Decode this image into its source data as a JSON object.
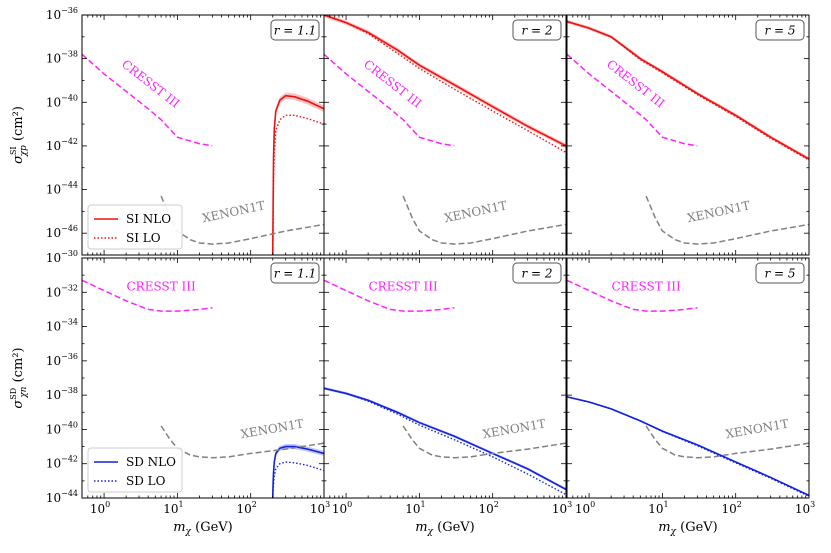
{
  "x_axis_label": "m_χ (GeV)",
  "x_tick_labels": [
    "10^0",
    "10^1",
    "10^2",
    "10^3"
  ],
  "row_axis_labels": [
    "σ^SI_χp (cm²)",
    "σ^SD_χn (cm²)"
  ],
  "legends": [
    {
      "solid": "SI NLO",
      "dotted": "SI LO"
    },
    {
      "solid": "SD NLO",
      "dotted": "SD LO"
    }
  ],
  "colors": {
    "si": "#ee1111",
    "sd": "#1122dd",
    "cresst": "#ff22ff",
    "xenon": "#808080"
  },
  "chart_data": [
    {
      "type": "line",
      "id": "si-r1.1",
      "row": 0,
      "col": 0,
      "r_label": "r = 1.1",
      "xscale": "log",
      "xlim": [
        0.5,
        1000
      ],
      "yscale": "log",
      "ylim": [
        -47,
        -36
      ],
      "ytick_exponents": [
        -36,
        -38,
        -40,
        -42,
        -44,
        -46
      ],
      "series": [
        {
          "name": "SI NLO",
          "style": "solid",
          "x": [
            200,
            202,
            205,
            210,
            220,
            250,
            300,
            400,
            600,
            1000
          ],
          "log10_y": [
            -47,
            -45,
            -42.5,
            -41.2,
            -40.4,
            -39.9,
            -39.7,
            -39.75,
            -39.95,
            -40.3
          ],
          "band": 0.15
        },
        {
          "name": "SI LO",
          "style": "dotted",
          "x": [
            200,
            202,
            205,
            210,
            220,
            250,
            300,
            400,
            600,
            1000
          ],
          "log10_y": [
            -47,
            -45.6,
            -43.5,
            -42.3,
            -41.3,
            -40.8,
            -40.6,
            -40.6,
            -40.75,
            -41.0
          ]
        },
        {
          "name": "CRESST III",
          "style": "dashed",
          "x": [
            0.5,
            1,
            2,
            4,
            6,
            10,
            20,
            30
          ],
          "log10_y": [
            -37.8,
            -38.7,
            -39.5,
            -40.3,
            -40.8,
            -41.6,
            -41.9,
            -42.0
          ]
        },
        {
          "name": "XENON1T",
          "style": "dashed",
          "x": [
            6,
            8,
            10,
            15,
            20,
            30,
            50,
            100,
            300,
            1000
          ],
          "log10_y": [
            -44.3,
            -45.3,
            -45.9,
            -46.3,
            -46.45,
            -46.5,
            -46.45,
            -46.25,
            -45.9,
            -45.6
          ]
        }
      ],
      "annotations": [
        {
          "text": "CRESST III"
        },
        {
          "text": "XENON1T"
        }
      ]
    },
    {
      "type": "line",
      "id": "si-r2",
      "row": 0,
      "col": 1,
      "r_label": "r = 2",
      "xscale": "log",
      "xlim": [
        0.5,
        1000
      ],
      "yscale": "log",
      "ylim": [
        -47,
        -36
      ],
      "ytick_exponents": [
        -36,
        -38,
        -40,
        -42,
        -44,
        -46
      ],
      "series": [
        {
          "name": "SI NLO",
          "style": "solid",
          "x": [
            0.5,
            1,
            2,
            5,
            10,
            30,
            100,
            300,
            1000
          ],
          "log10_y": [
            -36.0,
            -36.35,
            -36.8,
            -37.6,
            -38.3,
            -39.2,
            -40.2,
            -41.1,
            -42.0
          ],
          "band": 0.1
        },
        {
          "name": "SI LO",
          "style": "dotted",
          "x": [
            0.5,
            1,
            2,
            5,
            10,
            30,
            100,
            300,
            1000
          ],
          "log10_y": [
            -36.0,
            -36.35,
            -36.85,
            -37.75,
            -38.45,
            -39.4,
            -40.4,
            -41.3,
            -42.3
          ]
        },
        {
          "name": "CRESST III",
          "style": "dashed",
          "x": [
            0.5,
            1,
            2,
            4,
            6,
            10,
            20,
            30
          ],
          "log10_y": [
            -37.8,
            -38.7,
            -39.5,
            -40.3,
            -40.8,
            -41.6,
            -41.9,
            -42.0
          ]
        },
        {
          "name": "XENON1T",
          "style": "dashed",
          "x": [
            6,
            8,
            10,
            15,
            20,
            30,
            50,
            100,
            300,
            1000
          ],
          "log10_y": [
            -44.3,
            -45.3,
            -45.9,
            -46.3,
            -46.45,
            -46.5,
            -46.45,
            -46.25,
            -45.9,
            -45.6
          ]
        }
      ],
      "annotations": [
        {
          "text": "CRESST III"
        },
        {
          "text": "XENON1T"
        }
      ]
    },
    {
      "type": "line",
      "id": "si-r5",
      "row": 0,
      "col": 2,
      "r_label": "r = 5",
      "xscale": "log",
      "xlim": [
        0.5,
        1000
      ],
      "yscale": "log",
      "ylim": [
        -47,
        -36
      ],
      "ytick_exponents": [
        -36,
        -38,
        -40,
        -42,
        -44,
        -46
      ],
      "series": [
        {
          "name": "SI NLO",
          "style": "solid",
          "x": [
            0.5,
            1,
            2,
            5,
            10,
            30,
            100,
            300,
            1000
          ],
          "log10_y": [
            -36.3,
            -36.6,
            -37.0,
            -38.0,
            -38.6,
            -39.6,
            -40.6,
            -41.6,
            -42.6
          ],
          "band": 0.08
        },
        {
          "name": "SI LO",
          "style": "dotted",
          "x": [
            0.5,
            1,
            2,
            5,
            10,
            30,
            100,
            300,
            1000
          ],
          "log10_y": [
            -36.3,
            -36.6,
            -37.0,
            -38.05,
            -38.65,
            -39.65,
            -40.65,
            -41.65,
            -42.65
          ]
        },
        {
          "name": "CRESST III",
          "style": "dashed",
          "x": [
            0.5,
            1,
            2,
            4,
            6,
            10,
            20,
            30
          ],
          "log10_y": [
            -37.8,
            -38.7,
            -39.5,
            -40.3,
            -40.8,
            -41.6,
            -41.9,
            -42.0
          ]
        },
        {
          "name": "XENON1T",
          "style": "dashed",
          "x": [
            6,
            8,
            10,
            15,
            20,
            30,
            50,
            100,
            300,
            1000
          ],
          "log10_y": [
            -44.3,
            -45.3,
            -45.9,
            -46.3,
            -46.45,
            -46.5,
            -46.45,
            -46.25,
            -45.9,
            -45.6
          ]
        }
      ],
      "annotations": [
        {
          "text": "CRESST III"
        },
        {
          "text": "XENON1T"
        }
      ]
    },
    {
      "type": "line",
      "id": "sd-r1.1",
      "row": 1,
      "col": 0,
      "r_label": "r = 1.1",
      "xscale": "log",
      "xlim": [
        0.5,
        1000
      ],
      "yscale": "log",
      "ylim": [
        -44,
        -30
      ],
      "ytick_exponents": [
        -30,
        -32,
        -34,
        -36,
        -38,
        -40,
        -42,
        -44
      ],
      "series": [
        {
          "name": "SD NLO",
          "style": "solid",
          "x": [
            200,
            202,
            205,
            210,
            220,
            250,
            300,
            400,
            600,
            1000
          ],
          "log10_y": [
            -44,
            -43.2,
            -42.5,
            -41.9,
            -41.4,
            -41.1,
            -41.0,
            -41.0,
            -41.15,
            -41.4
          ],
          "band": 0.15
        },
        {
          "name": "SD LO",
          "style": "dotted",
          "x": [
            200,
            202,
            205,
            210,
            220,
            250,
            300,
            400,
            600,
            1000
          ],
          "log10_y": [
            -44,
            -43.6,
            -43.2,
            -42.7,
            -42.3,
            -42.0,
            -41.9,
            -41.95,
            -42.1,
            -42.4
          ]
        },
        {
          "name": "CRESST III",
          "style": "dashed",
          "x": [
            0.5,
            1,
            2,
            4,
            6,
            10,
            20,
            30
          ],
          "log10_y": [
            -31.3,
            -31.9,
            -32.5,
            -33.0,
            -33.1,
            -33.1,
            -33.0,
            -32.9
          ]
        },
        {
          "name": "XENON1T",
          "style": "dashed",
          "x": [
            6,
            8,
            10,
            15,
            20,
            30,
            50,
            100,
            300,
            1000
          ],
          "log10_y": [
            -39.8,
            -40.6,
            -41.1,
            -41.5,
            -41.6,
            -41.65,
            -41.6,
            -41.4,
            -41.15,
            -40.8
          ]
        }
      ],
      "annotations": [
        {
          "text": "CRESST III"
        },
        {
          "text": "XENON1T"
        }
      ]
    },
    {
      "type": "line",
      "id": "sd-r2",
      "row": 1,
      "col": 1,
      "r_label": "r = 2",
      "xscale": "log",
      "xlim": [
        0.5,
        1000
      ],
      "yscale": "log",
      "ylim": [
        -44,
        -30
      ],
      "ytick_exponents": [
        -30,
        -32,
        -34,
        -36,
        -38,
        -40,
        -42,
        -44
      ],
      "series": [
        {
          "name": "SD NLO",
          "style": "solid",
          "x": [
            0.5,
            1,
            2,
            5,
            10,
            30,
            100,
            300,
            1000
          ],
          "log10_y": [
            -37.6,
            -37.9,
            -38.3,
            -39.0,
            -39.6,
            -40.4,
            -41.4,
            -42.3,
            -43.5
          ],
          "band": 0.08
        },
        {
          "name": "SD LO",
          "style": "dotted",
          "x": [
            0.5,
            1,
            2,
            5,
            10,
            30,
            100,
            300,
            1000
          ],
          "log10_y": [
            -37.6,
            -37.9,
            -38.35,
            -39.1,
            -39.75,
            -40.6,
            -41.6,
            -42.6,
            -43.8
          ]
        },
        {
          "name": "CRESST III",
          "style": "dashed",
          "x": [
            0.5,
            1,
            2,
            4,
            6,
            10,
            20,
            30
          ],
          "log10_y": [
            -31.3,
            -31.9,
            -32.5,
            -33.0,
            -33.1,
            -33.1,
            -33.0,
            -32.9
          ]
        },
        {
          "name": "XENON1T",
          "style": "dashed",
          "x": [
            6,
            8,
            10,
            15,
            20,
            30,
            50,
            100,
            300,
            1000
          ],
          "log10_y": [
            -39.8,
            -40.6,
            -41.1,
            -41.5,
            -41.6,
            -41.65,
            -41.6,
            -41.4,
            -41.15,
            -40.8
          ]
        }
      ],
      "annotations": [
        {
          "text": "CRESST III"
        },
        {
          "text": "XENON1T"
        }
      ]
    },
    {
      "type": "line",
      "id": "sd-r5",
      "row": 1,
      "col": 2,
      "r_label": "r = 5",
      "xscale": "log",
      "xlim": [
        0.5,
        1000
      ],
      "yscale": "log",
      "ylim": [
        -44,
        -30
      ],
      "ytick_exponents": [
        -30,
        -32,
        -34,
        -36,
        -38,
        -40,
        -42,
        -44
      ],
      "series": [
        {
          "name": "SD NLO",
          "style": "solid",
          "x": [
            0.5,
            1,
            2,
            5,
            10,
            30,
            100,
            300,
            1000
          ],
          "log10_y": [
            -38.1,
            -38.4,
            -38.8,
            -39.5,
            -40.1,
            -40.9,
            -41.9,
            -42.8,
            -43.85
          ],
          "band": 0.05
        },
        {
          "name": "SD LO",
          "style": "dotted",
          "x": [
            0.5,
            1,
            2,
            5,
            10,
            30,
            100,
            300,
            1000
          ],
          "log10_y": [
            -38.1,
            -38.4,
            -38.8,
            -39.5,
            -40.12,
            -40.95,
            -41.95,
            -42.85,
            -43.9
          ]
        },
        {
          "name": "CRESST III",
          "style": "dashed",
          "x": [
            0.5,
            1,
            2,
            4,
            6,
            10,
            20,
            30
          ],
          "log10_y": [
            -31.3,
            -31.9,
            -32.5,
            -33.0,
            -33.1,
            -33.1,
            -33.0,
            -32.9
          ]
        },
        {
          "name": "XENON1T",
          "style": "dashed",
          "x": [
            6,
            8,
            10,
            15,
            20,
            30,
            50,
            100,
            300,
            1000
          ],
          "log10_y": [
            -39.8,
            -40.6,
            -41.1,
            -41.5,
            -41.6,
            -41.65,
            -41.6,
            -41.4,
            -41.15,
            -40.8
          ]
        }
      ],
      "annotations": [
        {
          "text": "CRESST III"
        },
        {
          "text": "XENON1T"
        }
      ]
    }
  ]
}
